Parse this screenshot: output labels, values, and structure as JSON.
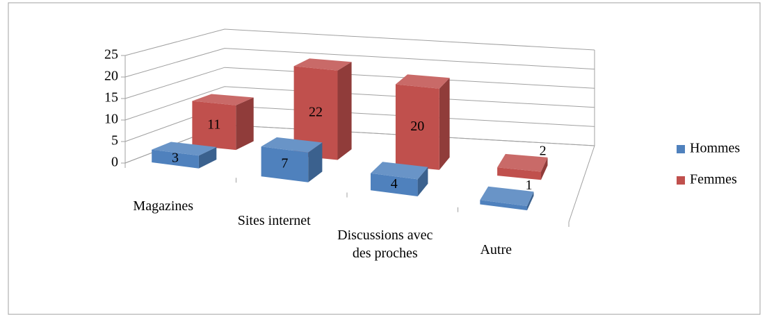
{
  "chart_data": {
    "type": "bar3d",
    "categories": [
      "Magazines",
      "Sites internet",
      "Discussions avec des proches",
      "Autre"
    ],
    "series": [
      {
        "name": "Hommes",
        "color": "#4f81bd",
        "values": [
          3,
          7,
          4,
          1
        ]
      },
      {
        "name": "Femmes",
        "color": "#c0504d",
        "values": [
          11,
          22,
          20,
          2
        ]
      }
    ],
    "ylim": [
      0,
      25
    ],
    "yticks": [
      0,
      5,
      10,
      15,
      20,
      25
    ],
    "grid": true,
    "legend": "right"
  }
}
